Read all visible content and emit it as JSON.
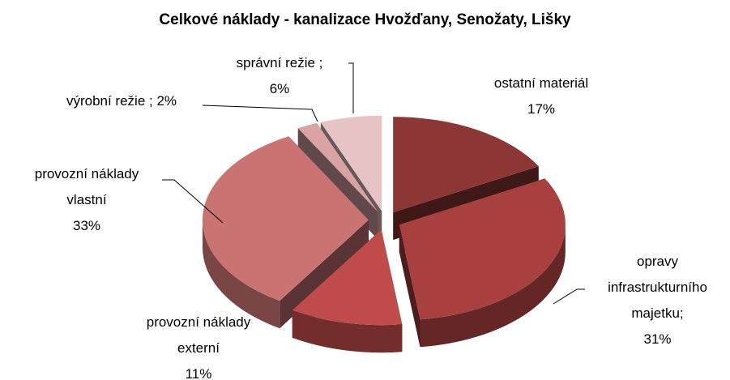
{
  "chart_data": {
    "type": "pie3d",
    "title": "Celkové náklady - kanalizace Hvožďany, Senožaty, Lišky",
    "categories": [
      "ostatní materiál",
      "opravy infrastrukturního majetku;",
      "provozní náklady externí",
      "provozní náklady vlastní",
      "výrobní režie ;",
      "správní režie ;"
    ],
    "values": [
      17,
      31,
      11,
      33,
      2,
      6
    ],
    "value_labels": [
      "17%",
      "31%",
      "11%",
      "33%",
      "2%",
      "6%"
    ],
    "colors": [
      "#8c3636",
      "#a84040",
      "#bf4b4b",
      "#c97373",
      "#d9a3a3",
      "#e8c3c3"
    ]
  }
}
